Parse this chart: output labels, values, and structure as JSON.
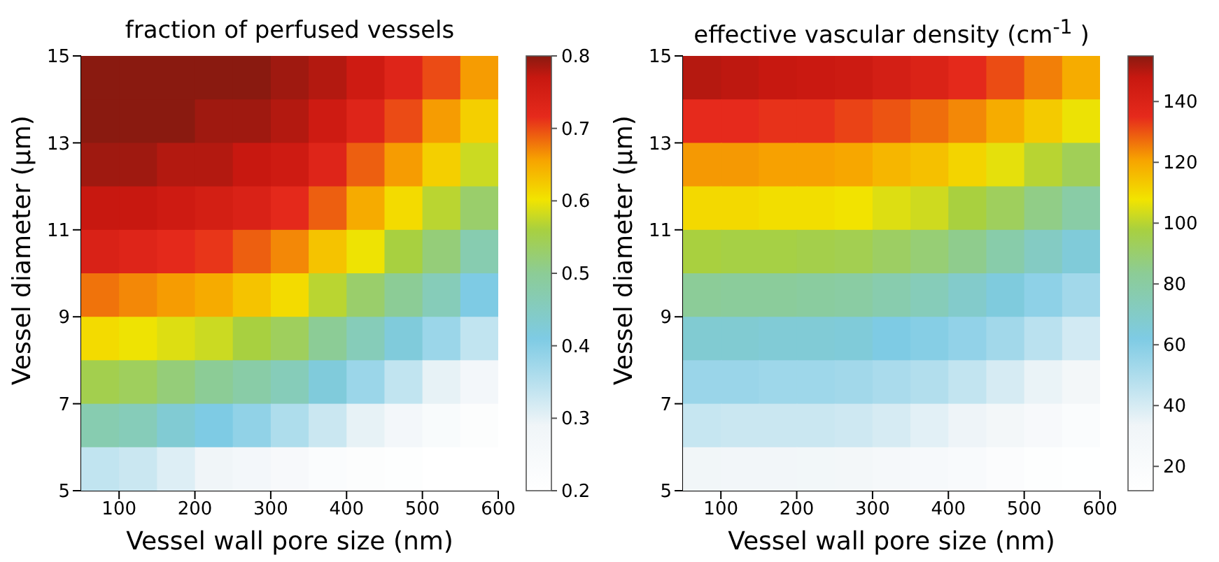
{
  "chart_data": [
    {
      "type": "heatmap",
      "title": "fraction of perfused vessels",
      "xlabel": "Vessel wall pore size (nm)",
      "ylabel": "Vessel diameter (µm)",
      "x": [
        75,
        125,
        175,
        225,
        275,
        325,
        375,
        425,
        475,
        525,
        575
      ],
      "xlim": [
        50,
        600
      ],
      "xticks": [
        100,
        200,
        300,
        400,
        500,
        600
      ],
      "ylim": [
        5,
        15
      ],
      "yticks": [
        5,
        7,
        9,
        11,
        13,
        15
      ],
      "clim": [
        0.2,
        0.8
      ],
      "cticks": [
        0.2,
        0.3,
        0.4,
        0.5,
        0.6,
        0.7,
        0.8
      ],
      "cells": [
        [
          0.8,
          0.8,
          0.8,
          0.8,
          0.8,
          0.79,
          0.78,
          0.76,
          0.73,
          0.7,
          0.66
        ],
        [
          0.8,
          0.8,
          0.8,
          0.79,
          0.79,
          0.78,
          0.76,
          0.73,
          0.7,
          0.66,
          0.62
        ],
        [
          0.79,
          0.79,
          0.78,
          0.78,
          0.77,
          0.76,
          0.73,
          0.69,
          0.66,
          0.62,
          0.58
        ],
        [
          0.77,
          0.77,
          0.76,
          0.75,
          0.74,
          0.72,
          0.69,
          0.65,
          0.61,
          0.57,
          0.53
        ],
        [
          0.74,
          0.73,
          0.72,
          0.71,
          0.69,
          0.67,
          0.63,
          0.6,
          0.56,
          0.52,
          0.47
        ],
        [
          0.68,
          0.67,
          0.66,
          0.65,
          0.63,
          0.61,
          0.57,
          0.53,
          0.5,
          0.46,
          0.41
        ],
        [
          0.61,
          0.6,
          0.59,
          0.58,
          0.56,
          0.54,
          0.5,
          0.46,
          0.42,
          0.38,
          0.34
        ],
        [
          0.55,
          0.54,
          0.52,
          0.5,
          0.48,
          0.46,
          0.42,
          0.38,
          0.34,
          0.3,
          0.27
        ],
        [
          0.47,
          0.46,
          0.43,
          0.41,
          0.39,
          0.36,
          0.33,
          0.3,
          0.27,
          0.24,
          0.22
        ],
        [
          0.34,
          0.33,
          0.31,
          0.29,
          0.27,
          0.25,
          0.23,
          0.22,
          0.21,
          0.2,
          0.2
        ]
      ]
    },
    {
      "type": "heatmap",
      "title": "effective vascular density (cm$^{-1}$ )",
      "xlabel": "Vessel wall pore size (nm)",
      "ylabel": "Vessel diameter (µm)",
      "x": [
        75,
        125,
        175,
        225,
        275,
        325,
        375,
        425,
        475,
        525,
        575
      ],
      "xlim": [
        50,
        600
      ],
      "xticks": [
        100,
        200,
        300,
        400,
        500,
        600
      ],
      "ylim": [
        5,
        15
      ],
      "yticks": [
        5,
        7,
        9,
        11,
        13,
        15
      ],
      "clim": [
        12,
        155
      ],
      "cticks": [
        20,
        40,
        60,
        80,
        100,
        120,
        140
      ],
      "cells": [
        [
          150,
          149,
          148,
          147,
          146,
          143,
          140,
          136,
          131,
          125,
          119
        ],
        [
          135,
          135,
          134,
          134,
          132,
          130,
          127,
          124,
          119,
          113,
          107
        ],
        [
          122,
          122,
          121,
          121,
          120,
          117,
          115,
          111,
          106,
          100,
          94
        ],
        [
          110,
          110,
          109,
          109,
          108,
          105,
          103,
          98,
          93,
          86,
          79
        ],
        [
          98,
          97,
          97,
          96,
          95,
          92,
          89,
          85,
          78,
          71,
          65
        ],
        [
          83,
          82,
          82,
          81,
          80,
          77,
          74,
          69,
          64,
          58,
          53
        ],
        [
          67,
          67,
          66,
          66,
          65,
          62,
          60,
          57,
          53,
          47,
          41
        ],
        [
          55,
          55,
          54,
          54,
          53,
          51,
          49,
          45,
          40,
          35,
          29
        ],
        [
          44,
          43,
          43,
          43,
          42,
          40,
          37,
          34,
          29,
          24,
          19
        ],
        [
          32,
          31,
          31,
          30,
          29,
          27,
          25,
          22,
          18,
          15,
          13
        ]
      ]
    }
  ]
}
